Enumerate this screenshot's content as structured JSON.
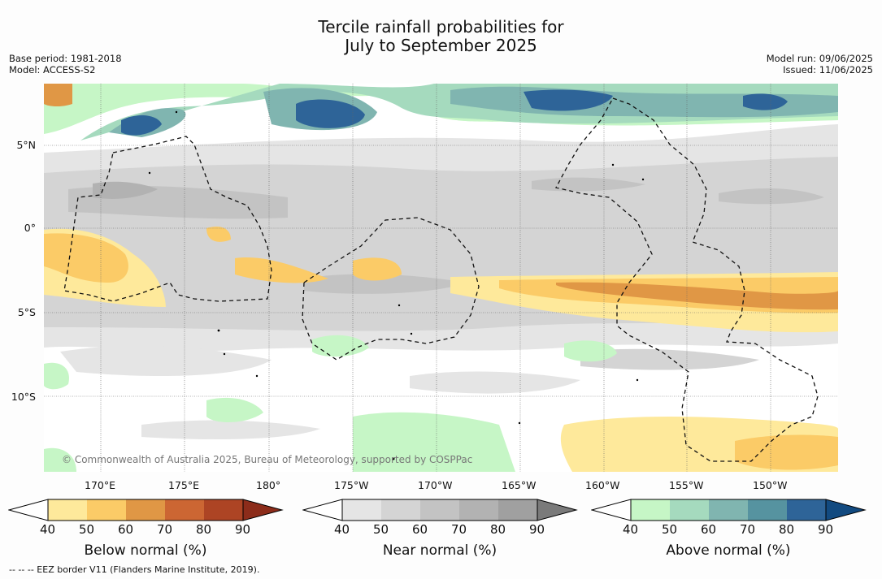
{
  "title": {
    "line1": "Tercile rainfall probabilities for",
    "line2": "July to September 2025"
  },
  "meta_left": {
    "base_period": "Base period: 1981-2018",
    "model": "Model: ACCESS-S2"
  },
  "meta_right": {
    "model_run": "Model run: 09/06/2025",
    "issued": "Issued: 11/06/2025"
  },
  "map": {
    "lat_labels": [
      "5°N",
      "0°",
      "5°S",
      "10°S"
    ],
    "lon_labels": [
      "170°E",
      "175°E",
      "180°",
      "175°W",
      "170°W",
      "165°W",
      "160°W",
      "155°W",
      "150°W"
    ],
    "copyright": "© Commonwealth of Australia 2025, Bureau of Meteorology, supported by COSPPac",
    "colors": {
      "land_normal_bg": "#ffffff",
      "near_40": "#e5e5e5",
      "near_50": "#d4d4d4",
      "near_60": "#c3c3c3",
      "near_70": "#b2b2b2",
      "below_40": "#fee99b",
      "below_50": "#fbcb67",
      "below_60": "#e09745",
      "above_40": "#c6f6c6",
      "above_50": "#a5dabe",
      "above_60": "#80b5b0",
      "above_70": "#5693a0",
      "above_80": "#2e6498"
    }
  },
  "legends": [
    {
      "label": "Below normal (%)",
      "ticks": [
        "40",
        "50",
        "60",
        "70",
        "80",
        "90"
      ],
      "colors": [
        "#fee99b",
        "#fbcb67",
        "#e09745",
        "#cc6633",
        "#ad4424"
      ],
      "over_color": "#8c2c1a"
    },
    {
      "label": "Near normal (%)",
      "ticks": [
        "40",
        "50",
        "60",
        "70",
        "80",
        "90"
      ],
      "colors": [
        "#e5e5e5",
        "#d4d4d4",
        "#c3c3c3",
        "#b2b2b2",
        "#a0a0a0"
      ],
      "over_color": "#7a7a7a"
    },
    {
      "label": "Above normal (%)",
      "ticks": [
        "40",
        "50",
        "60",
        "70",
        "80",
        "90"
      ],
      "colors": [
        "#c6f6c6",
        "#a5dabe",
        "#80b5b0",
        "#5693a0",
        "#2e6498"
      ],
      "over_color": "#124a80"
    }
  ],
  "footer": "--  --  -- EEZ border V11 (Flanders Marine Institute, 2019)."
}
